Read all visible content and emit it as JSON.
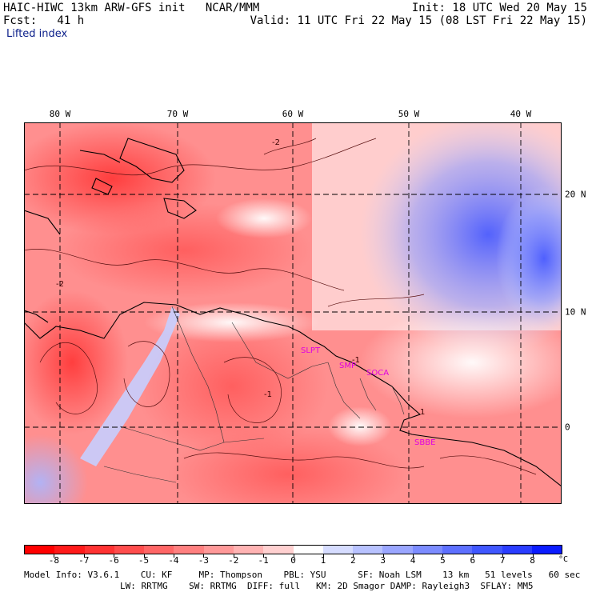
{
  "header": {
    "title": "HAIC-HIWC 13km ARW-GFS init   NCAR/MMM",
    "forecast": "Fcst:   41 h",
    "field": "Lifted index",
    "init": "Init: 18 UTC Wed 20 May 15",
    "valid": "Valid: 11 UTC Fri 22 May 15 (08 LST Fri 22 May 15)"
  },
  "map": {
    "lon_labels": [
      "80 W",
      "70 W",
      "60 W",
      "50 W",
      "40 W"
    ],
    "lat_labels": [
      "20 N",
      "10 N",
      "0"
    ],
    "stations": [
      "SLPT",
      "SMP",
      "SOCA",
      "SBBE"
    ],
    "contour_labels": [
      "-2",
      "-2",
      "-1",
      "-1",
      "1"
    ]
  },
  "colorbar": {
    "ticks": [
      "-8",
      "-7",
      "-6",
      "-5",
      "-4",
      "-3",
      "-2",
      "-1",
      "0",
      "1",
      "2",
      "3",
      "4",
      "5",
      "6",
      "7",
      "8"
    ],
    "unit": "°C",
    "colors": [
      "#ff0000",
      "#ff1a1a",
      "#ff3333",
      "#ff4d4d",
      "#ff6666",
      "#ff8080",
      "#ff9999",
      "#ffb3b3",
      "#ffd0d0",
      "#ffffff",
      "#d6dcff",
      "#b8c2ff",
      "#9aa6ff",
      "#7c8cff",
      "#5e70ff",
      "#4057ff",
      "#2a3dff",
      "#0b1cff"
    ]
  },
  "footer": {
    "line1": "Model Info: V3.6.1    CU: KF     MP: Thompson    PBL: YSU      SF: Noah LSM    13 km   51 levels   60 sec",
    "line2": "LW: RRTMG    SW: RRTMG  DIFF: full   KM: 2D Smagor DAMP: Rayleigh3  SFLAY: MM5"
  }
}
